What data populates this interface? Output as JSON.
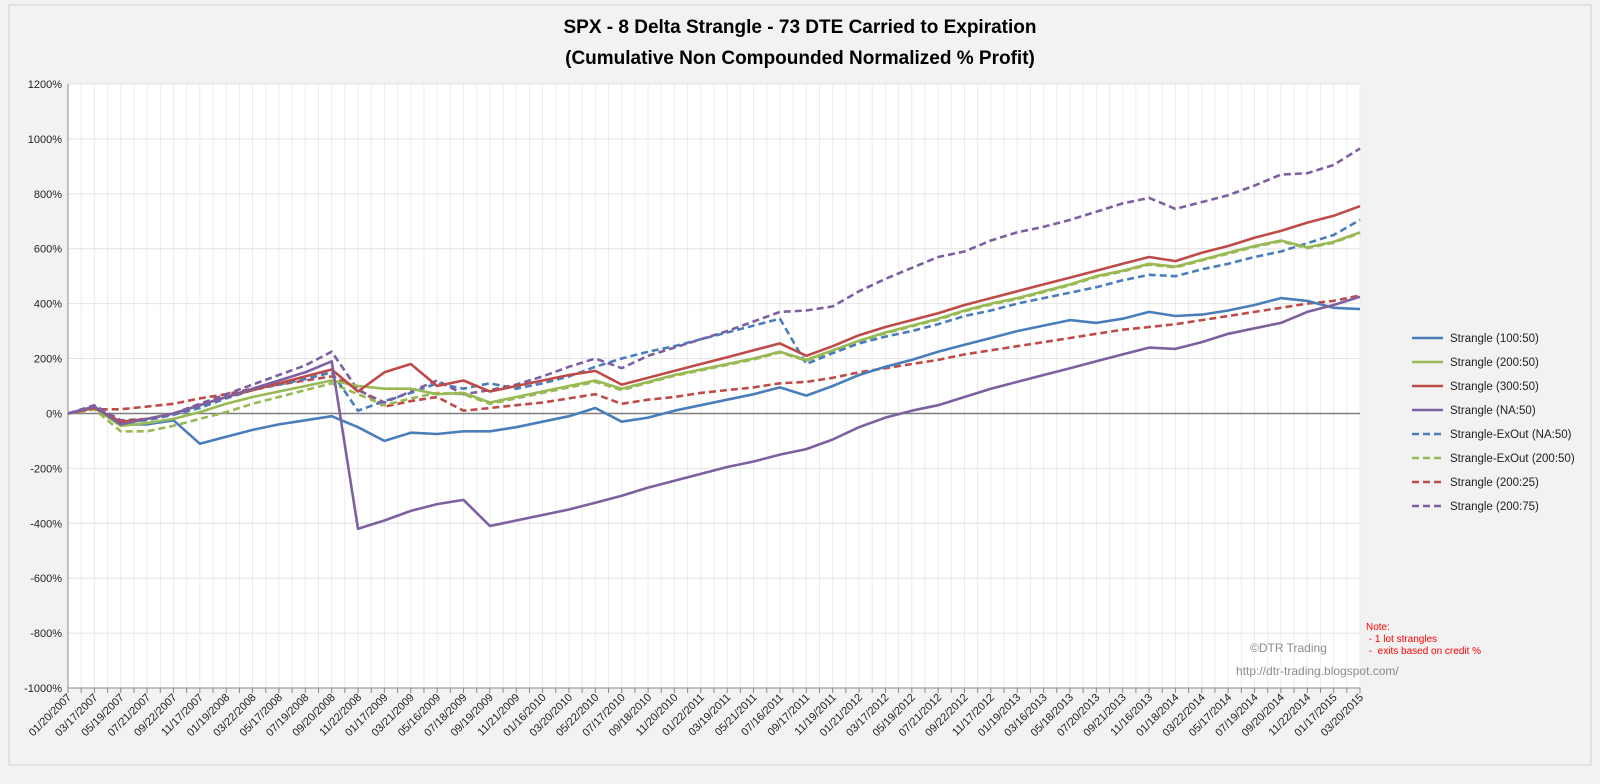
{
  "chart_data": {
    "type": "line",
    "title": [
      "SPX - 8 Delta Strangle - 73 DTE Carried to Expiration",
      "(Cumulative Non Compounded Normalized % Profit)"
    ],
    "xlabel": "",
    "ylabel": "",
    "ylim": [
      -1000,
      1200
    ],
    "yticks": [
      "1200%",
      "1000%",
      "800%",
      "600%",
      "400%",
      "200%",
      "0%",
      "-200%",
      "-400%",
      "-600%",
      "-800%",
      "-1000%"
    ],
    "ytick_values": [
      1200,
      1000,
      800,
      600,
      400,
      200,
      0,
      -200,
      -400,
      -600,
      -800,
      -1000
    ],
    "grid": true,
    "legend_position": "right",
    "x": [
      "01/20/2007",
      "03/17/2007",
      "05/19/2007",
      "07/21/2007",
      "09/22/2007",
      "11/17/2007",
      "01/19/2008",
      "03/22/2008",
      "05/17/2008",
      "07/19/2008",
      "09/20/2008",
      "11/22/2008",
      "01/17/2009",
      "03/21/2009",
      "05/16/2009",
      "07/18/2009",
      "09/19/2009",
      "11/21/2009",
      "01/16/2010",
      "03/20/2010",
      "05/22/2010",
      "07/17/2010",
      "09/18/2010",
      "11/20/2010",
      "01/22/2011",
      "03/19/2011",
      "05/21/2011",
      "07/16/2011",
      "09/17/2011",
      "11/19/2011",
      "01/21/2012",
      "03/17/2012",
      "05/19/2012",
      "07/21/2012",
      "09/22/2012",
      "11/17/2012",
      "01/19/2013",
      "03/16/2013",
      "05/18/2013",
      "07/20/2013",
      "09/21/2013",
      "11/16/2013",
      "01/18/2014",
      "03/22/2014",
      "05/17/2014",
      "07/19/2014",
      "09/20/2014",
      "11/22/2014",
      "01/17/2015",
      "03/20/2015"
    ],
    "series": [
      {
        "name": "Strangle  (100:50)",
        "color": "#4a7ebb",
        "dash": false,
        "values": [
          0,
          25,
          -40,
          -40,
          -25,
          -110,
          -85,
          -60,
          -40,
          -25,
          -10,
          -50,
          -100,
          -70,
          -75,
          -65,
          -65,
          -50,
          -30,
          -10,
          20,
          -30,
          -15,
          10,
          30,
          50,
          70,
          95,
          65,
          100,
          140,
          170,
          195,
          225,
          250,
          275,
          300,
          320,
          340,
          330,
          345,
          370,
          355,
          360,
          375,
          395,
          420,
          410,
          385,
          380
        ]
      },
      {
        "name": "Strangle  (200:50)",
        "color": "#98b954",
        "dash": false,
        "values": [
          0,
          20,
          -45,
          -35,
          -20,
          5,
          35,
          60,
          80,
          100,
          120,
          100,
          90,
          90,
          70,
          75,
          40,
          60,
          80,
          100,
          120,
          90,
          115,
          140,
          160,
          180,
          200,
          225,
          195,
          230,
          265,
          295,
          320,
          345,
          375,
          400,
          420,
          445,
          470,
          500,
          520,
          545,
          535,
          560,
          585,
          610,
          630,
          605,
          625,
          660
        ]
      },
      {
        "name": "Strangle  (300:50)",
        "color": "#be4b48",
        "dash": false,
        "values": [
          0,
          20,
          -30,
          -20,
          0,
          30,
          60,
          85,
          110,
          135,
          160,
          80,
          150,
          180,
          100,
          120,
          80,
          100,
          120,
          140,
          155,
          105,
          130,
          155,
          180,
          205,
          230,
          255,
          210,
          245,
          285,
          315,
          340,
          365,
          395,
          420,
          445,
          470,
          495,
          520,
          545,
          570,
          555,
          585,
          610,
          640,
          665,
          695,
          720,
          755
        ]
      },
      {
        "name": "Strangle  (NA:50)",
        "color": "#7d60a0",
        "dash": false,
        "values": [
          0,
          25,
          -40,
          -20,
          0,
          30,
          60,
          90,
          120,
          150,
          190,
          -420,
          -390,
          -355,
          -330,
          -315,
          -410,
          -390,
          -370,
          -350,
          -325,
          -300,
          -270,
          -245,
          -220,
          -195,
          -175,
          -150,
          -130,
          -95,
          -50,
          -15,
          10,
          30,
          60,
          90,
          115,
          140,
          165,
          190,
          215,
          240,
          235,
          260,
          290,
          310,
          330,
          370,
          395,
          425
        ]
      },
      {
        "name": "Strangle-ExOut  (NA:50)",
        "color": "#4a7ebb",
        "dash": true,
        "values": [
          0,
          25,
          -30,
          -25,
          -5,
          20,
          55,
          85,
          105,
          125,
          150,
          10,
          45,
          75,
          110,
          90,
          110,
          90,
          110,
          135,
          170,
          200,
          225,
          245,
          270,
          295,
          320,
          345,
          180,
          220,
          255,
          280,
          300,
          325,
          355,
          375,
          400,
          420,
          440,
          460,
          485,
          505,
          500,
          525,
          545,
          570,
          590,
          620,
          650,
          705
        ]
      },
      {
        "name": "Strangle-ExOut  (200:50)",
        "color": "#98b954",
        "dash": true,
        "values": [
          0,
          15,
          -65,
          -65,
          -45,
          -20,
          5,
          35,
          60,
          85,
          110,
          70,
          30,
          55,
          75,
          70,
          35,
          55,
          75,
          95,
          115,
          85,
          112,
          137,
          157,
          177,
          197,
          222,
          192,
          227,
          262,
          292,
          317,
          342,
          372,
          397,
          417,
          442,
          467,
          497,
          517,
          542,
          532,
          557,
          582,
          607,
          627,
          602,
          622,
          657
        ]
      },
      {
        "name": "Strangle  (200:25)",
        "color": "#be4b48",
        "dash": true,
        "values": [
          0,
          15,
          15,
          25,
          35,
          55,
          70,
          90,
          105,
          120,
          135,
          90,
          25,
          45,
          60,
          10,
          20,
          30,
          40,
          55,
          70,
          35,
          50,
          60,
          75,
          85,
          95,
          110,
          115,
          130,
          150,
          165,
          180,
          195,
          215,
          230,
          245,
          260,
          275,
          290,
          305,
          315,
          325,
          340,
          355,
          370,
          385,
          400,
          410,
          430
        ]
      },
      {
        "name": "Strangle  (200:75)",
        "color": "#7d60a0",
        "dash": true,
        "values": [
          0,
          30,
          -25,
          -20,
          0,
          35,
          70,
          105,
          140,
          175,
          225,
          85,
          40,
          80,
          120,
          70,
          85,
          105,
          135,
          170,
          200,
          165,
          210,
          240,
          270,
          300,
          335,
          370,
          375,
          390,
          445,
          490,
          530,
          570,
          590,
          630,
          660,
          680,
          705,
          735,
          765,
          785,
          745,
          770,
          795,
          830,
          870,
          875,
          905,
          965
        ]
      }
    ]
  },
  "watermark": {
    "copyright": "©DTR Trading",
    "url": "http://dtr-trading.blogspot.com/"
  },
  "note": {
    "title": "Note:",
    "lines": [
      " - 1 lot strangles",
      " -  exits based on credit %"
    ]
  }
}
